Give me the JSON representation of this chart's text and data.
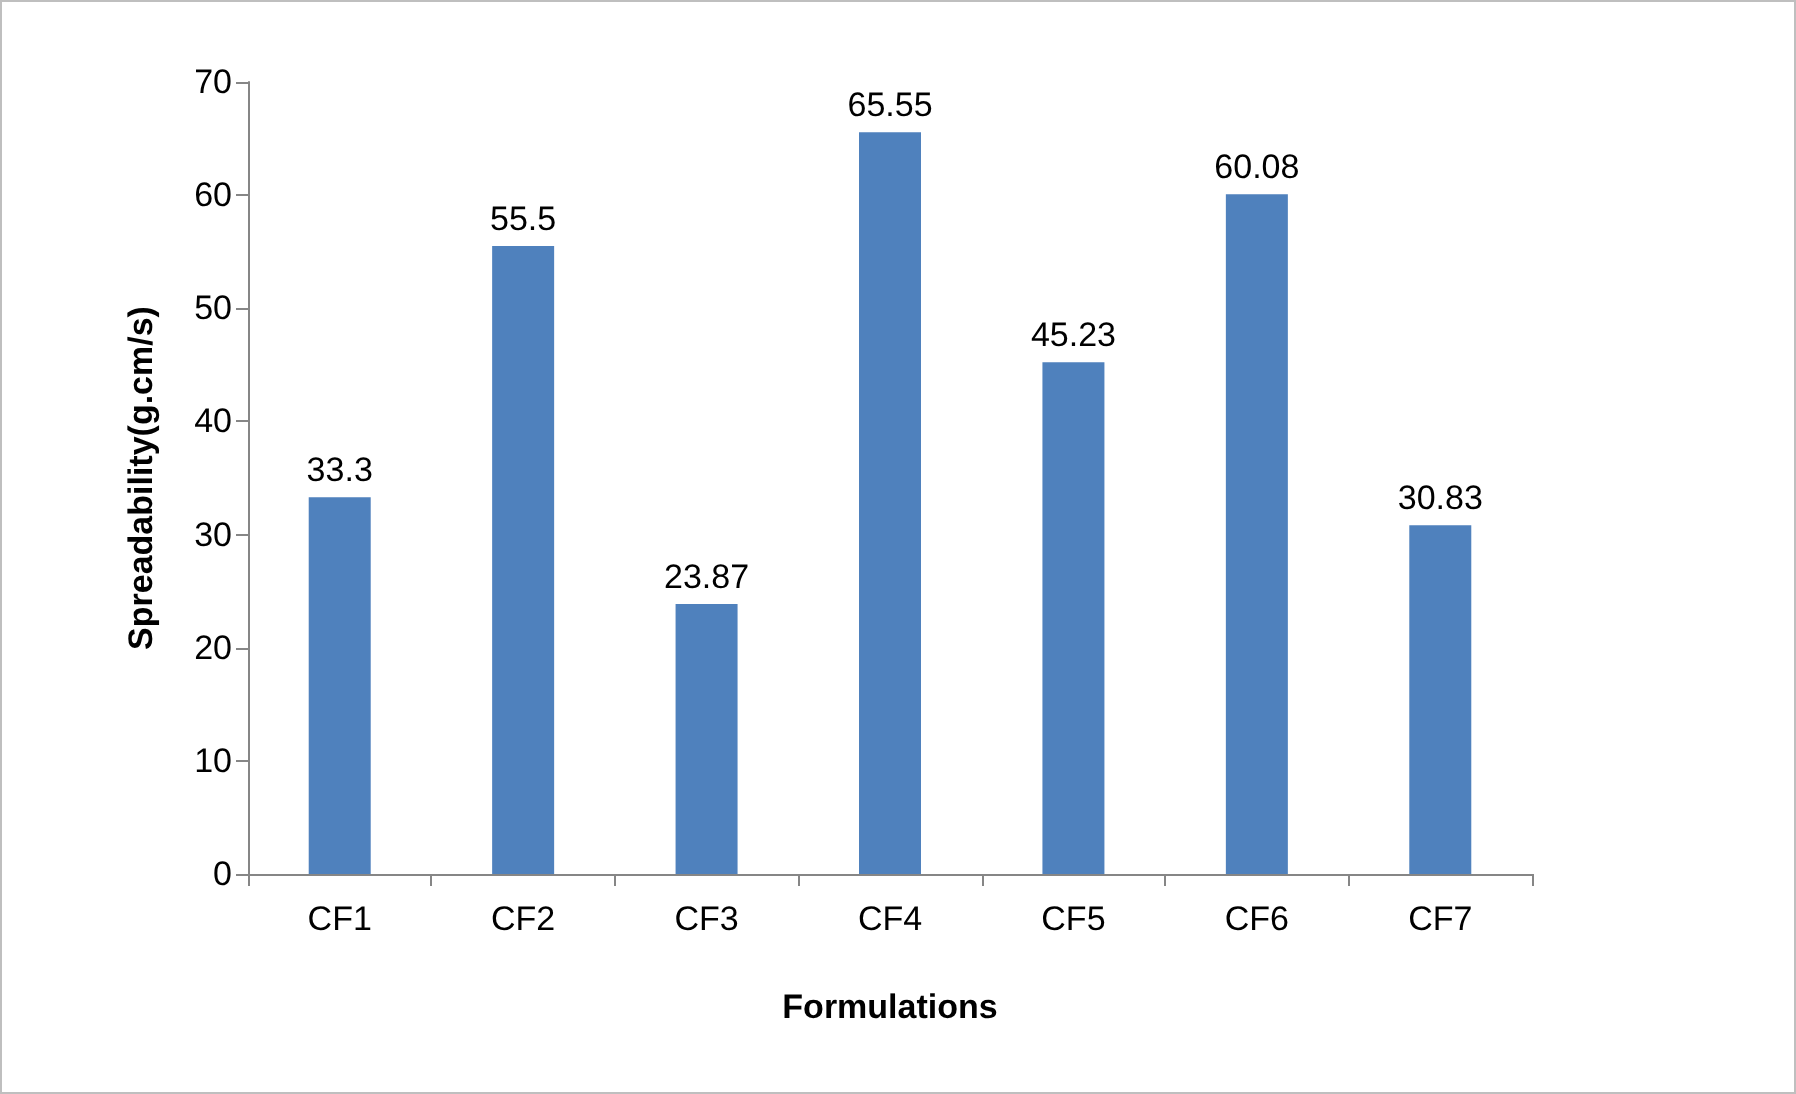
{
  "chart_data": {
    "type": "bar",
    "xlabel": "Formulations",
    "ylabel": "Spreadability(g.cm/s)",
    "categories": [
      "CF1",
      "CF2",
      "CF3",
      "CF4",
      "CF5",
      "CF6",
      "CF7"
    ],
    "values": [
      33.3,
      55.5,
      23.87,
      65.55,
      45.23,
      60.08,
      30.83
    ],
    "color": "#4f81bd",
    "data_labels": true,
    "ylim": [
      0,
      70
    ],
    "yticks": [
      0,
      10,
      20,
      30,
      40,
      50,
      60,
      70
    ],
    "grid": false
  }
}
